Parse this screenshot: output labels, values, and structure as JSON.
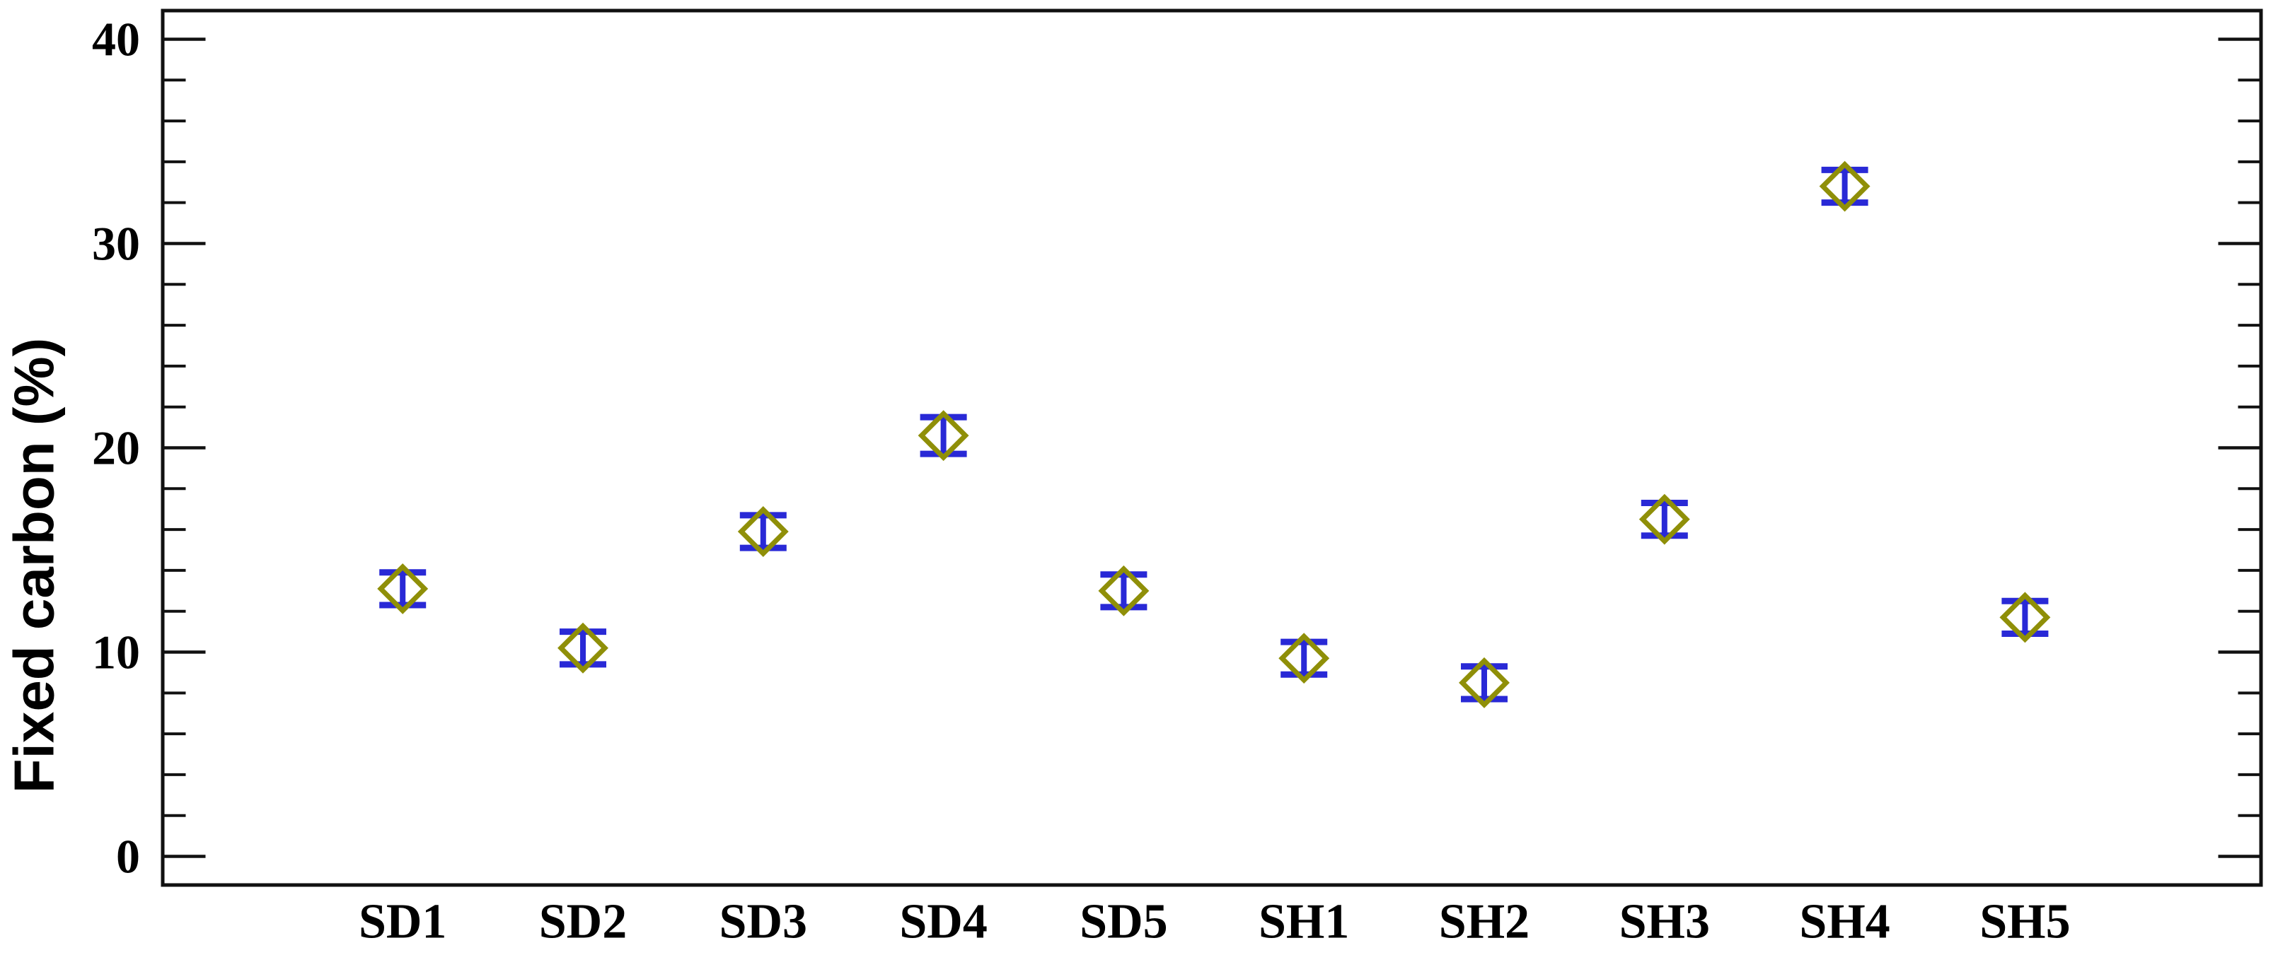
{
  "figure": {
    "background": "#ffffff"
  },
  "y_axis": {
    "title": "Fixed carbon (%)",
    "tick_labels": [
      "0",
      "10",
      "20",
      "30",
      "40"
    ]
  },
  "chart_data": {
    "type": "scatter",
    "title": "",
    "xlabel": "",
    "ylabel": "Fixed carbon (%)",
    "categories": [
      "SD1",
      "SD2",
      "SD3",
      "SD4",
      "SD5",
      "SH1",
      "SH2",
      "SH3",
      "SH4",
      "SH5"
    ],
    "series": [
      {
        "name": "Fixed carbon (%)",
        "values": [
          13.1,
          10.2,
          15.9,
          20.6,
          13.0,
          9.7,
          8.5,
          16.5,
          32.8,
          11.7
        ],
        "errors": [
          0.8,
          0.8,
          0.8,
          0.9,
          0.8,
          0.8,
          0.8,
          0.8,
          0.8,
          0.8
        ]
      }
    ],
    "ylim": [
      -1.4,
      41.4
    ],
    "yticks_major": [
      0,
      10,
      20,
      30,
      40
    ],
    "ytick_minor_step": 2,
    "grid": false,
    "legend_position": "none",
    "marker": "open-diamond",
    "colors": {
      "marker": "#8f8f08",
      "error_bar": "#2929d6",
      "axis": "#111111",
      "text": "#000000"
    }
  }
}
